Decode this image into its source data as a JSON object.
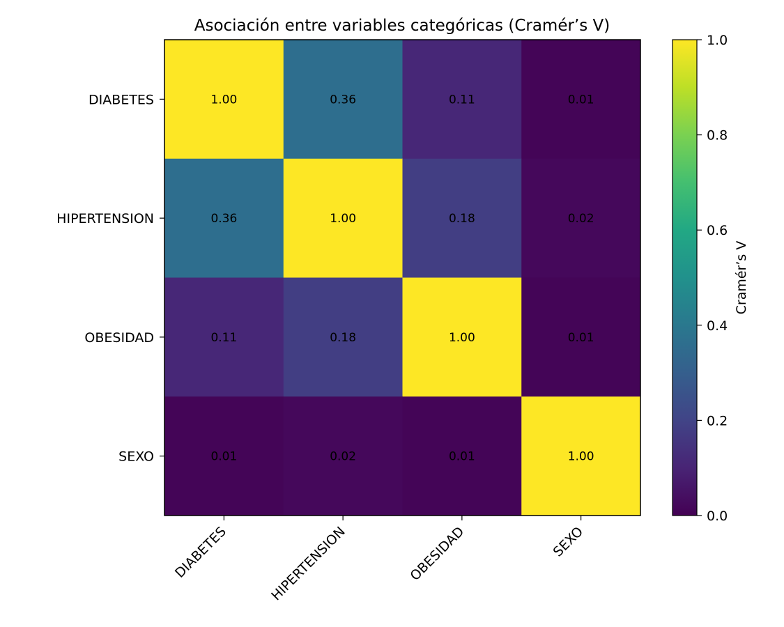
{
  "chart_data": {
    "type": "heatmap",
    "title": "Asociación entre variables categóricas (Cramér’s V)",
    "x_categories": [
      "DIABETES",
      "HIPERTENSION",
      "OBESIDAD",
      "SEXO"
    ],
    "y_categories": [
      "DIABETES",
      "HIPERTENSION",
      "OBESIDAD",
      "SEXO"
    ],
    "values": [
      [
        1.0,
        0.36,
        0.11,
        0.01
      ],
      [
        0.36,
        1.0,
        0.18,
        0.02
      ],
      [
        0.11,
        0.18,
        1.0,
        0.01
      ],
      [
        0.01,
        0.02,
        0.01,
        1.0
      ]
    ],
    "cell_labels": [
      [
        "1.00",
        "0.36",
        "0.11",
        "0.01"
      ],
      [
        "0.36",
        "1.00",
        "0.18",
        "0.02"
      ],
      [
        "0.11",
        "0.18",
        "1.00",
        "0.01"
      ],
      [
        "0.01",
        "0.02",
        "0.01",
        "1.00"
      ]
    ],
    "colormap": "viridis",
    "vmin": 0.0,
    "vmax": 1.0,
    "colorbar": {
      "label": "Cramér’s V",
      "ticks": [
        0.0,
        0.2,
        0.4,
        0.6,
        0.8,
        1.0
      ],
      "tick_labels": [
        "0.0",
        "0.2",
        "0.4",
        "0.6",
        "0.8",
        "1.0"
      ]
    },
    "grid": false,
    "x_tick_rotation": "45"
  }
}
